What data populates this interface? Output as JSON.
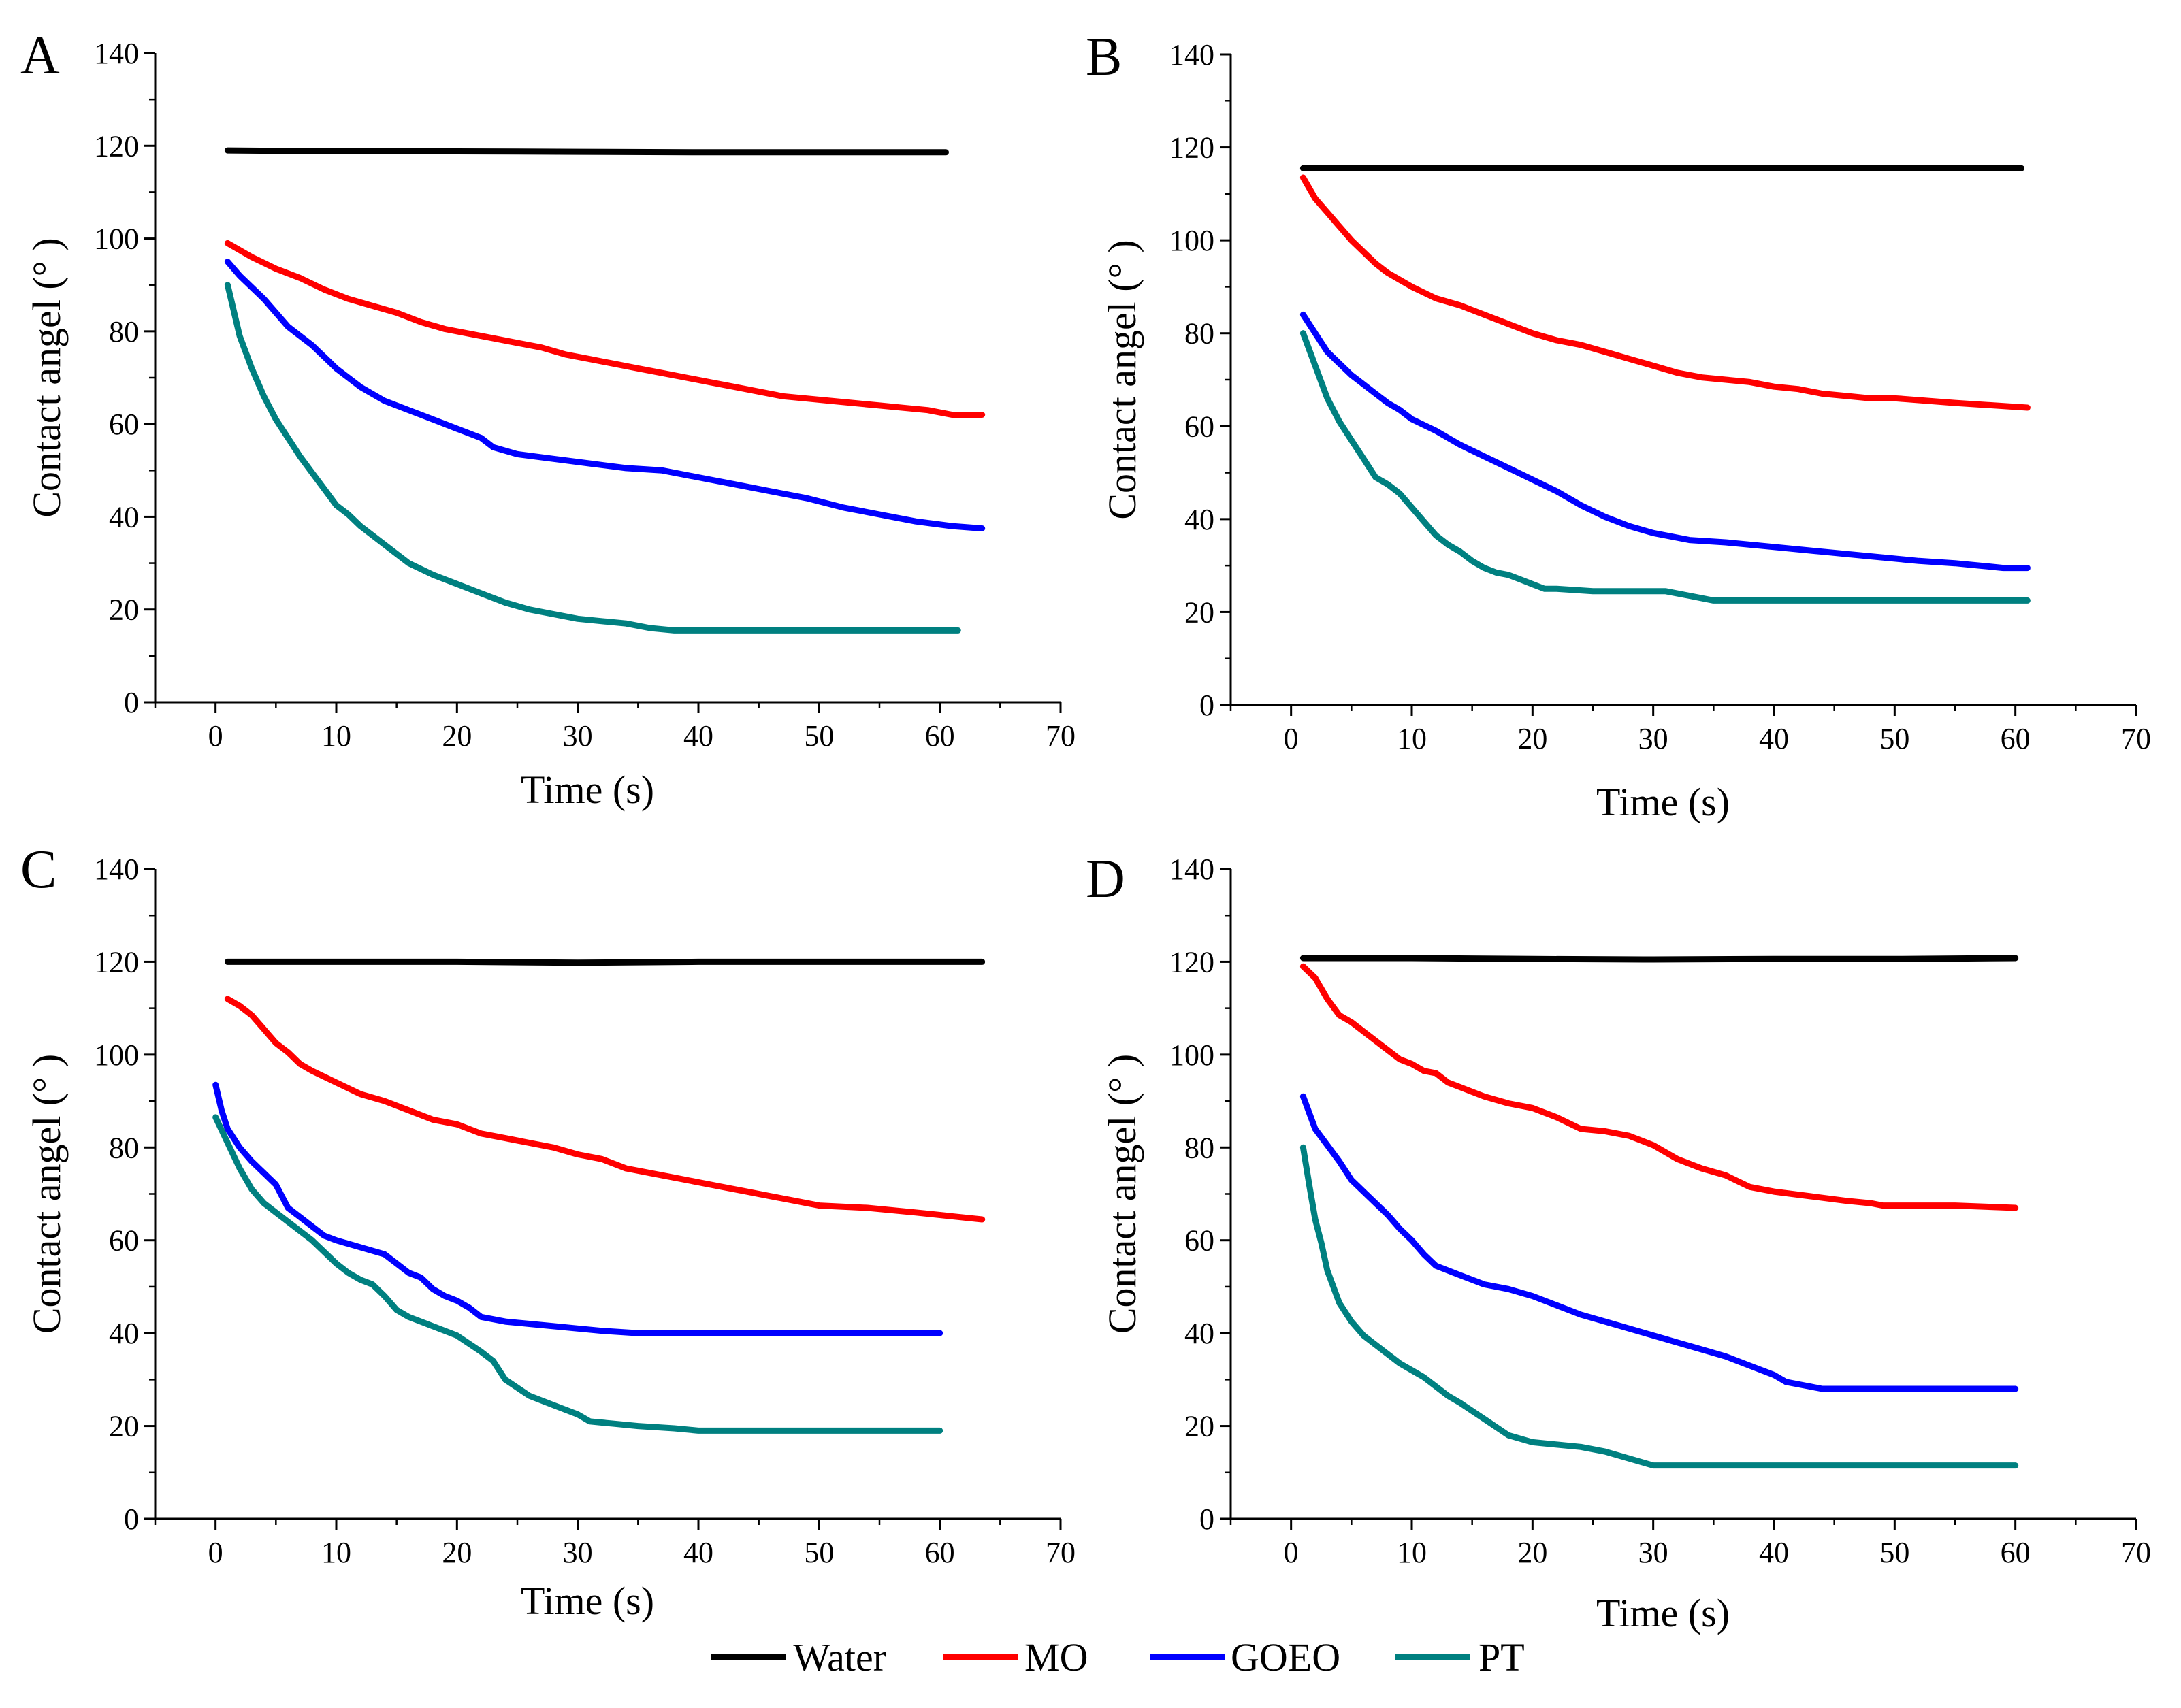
{
  "figure": {
    "legend": [
      {
        "name": "Water",
        "color": "#000000"
      },
      {
        "name": "MO",
        "color": "#ff0000"
      },
      {
        "name": "GOEO",
        "color": "#0000ff"
      },
      {
        "name": "PT",
        "color": "#008080"
      }
    ]
  },
  "chart_data": [
    {
      "type": "line",
      "panel": "A",
      "xlabel": "Time (s)",
      "ylabel": "Contact angel (° )",
      "xlim": [
        -5,
        70
      ],
      "ylim": [
        0,
        140
      ],
      "xticks": [
        0,
        10,
        20,
        30,
        40,
        50,
        60,
        70
      ],
      "yticks": [
        0,
        20,
        40,
        60,
        80,
        100,
        120,
        140
      ],
      "series": [
        {
          "name": "Water",
          "color": "#000000",
          "x": [
            1,
            10,
            20,
            30,
            40,
            50,
            60.5
          ],
          "y": [
            119,
            118.8,
            118.8,
            118.7,
            118.6,
            118.6,
            118.6
          ]
        },
        {
          "name": "MO",
          "color": "#ff0000",
          "x": [
            1,
            3,
            5,
            7,
            9,
            11,
            13,
            15,
            17,
            19,
            21,
            23,
            25,
            27,
            29,
            31,
            33,
            35,
            37,
            39,
            41,
            43,
            45,
            47,
            49,
            51,
            53,
            55,
            57,
            59,
            61,
            63.5
          ],
          "y": [
            99,
            96,
            93.5,
            91.5,
            89,
            87,
            85.5,
            84,
            82,
            80.5,
            79.5,
            78.5,
            77.5,
            76.5,
            75,
            74,
            73,
            72,
            71,
            70,
            69,
            68,
            67,
            66,
            65.5,
            65,
            64.5,
            64,
            63.5,
            63,
            62,
            62
          ]
        },
        {
          "name": "GOEO",
          "color": "#0000ff",
          "x": [
            1,
            2,
            4,
            6,
            8,
            10,
            12,
            14,
            16,
            18,
            20,
            22,
            23,
            25,
            28,
            31,
            34,
            37,
            40,
            43,
            46,
            49,
            52,
            55,
            58,
            61,
            63.5
          ],
          "y": [
            95,
            92,
            87,
            81,
            77,
            72,
            68,
            65,
            63,
            61,
            59,
            57,
            55,
            53.5,
            52.5,
            51.5,
            50.5,
            50,
            48.5,
            47,
            45.5,
            44,
            42,
            40.5,
            39,
            38,
            37.5
          ]
        },
        {
          "name": "PT",
          "color": "#008080",
          "x": [
            1,
            2,
            3,
            4,
            5,
            6,
            7,
            8,
            9,
            10,
            11,
            12,
            13,
            14,
            16,
            18,
            20,
            22,
            24,
            26,
            28,
            30,
            32,
            34,
            36,
            38,
            40,
            45,
            50,
            55,
            61.5
          ],
          "y": [
            90,
            79,
            72,
            66,
            61,
            57,
            53,
            49.5,
            46,
            42.5,
            40.5,
            38,
            36,
            34,
            30,
            27.5,
            25.5,
            23.5,
            21.5,
            20,
            19,
            18,
            17.5,
            17,
            16,
            15.5,
            15.5,
            15.5,
            15.5,
            15.5,
            15.5
          ]
        }
      ]
    },
    {
      "type": "line",
      "panel": "B",
      "xlabel": "Time (s)",
      "ylabel": "Contact angel (° )",
      "xlim": [
        -5,
        70
      ],
      "ylim": [
        0,
        140
      ],
      "xticks": [
        0,
        10,
        20,
        30,
        40,
        50,
        60,
        70
      ],
      "yticks": [
        0,
        20,
        40,
        60,
        80,
        100,
        120,
        140
      ],
      "series": [
        {
          "name": "Water",
          "color": "#000000",
          "x": [
            1,
            10,
            20,
            30,
            40,
            50,
            60.5
          ],
          "y": [
            115.5,
            115.5,
            115.5,
            115.5,
            115.5,
            115.5,
            115.5
          ]
        },
        {
          "name": "MO",
          "color": "#ff0000",
          "x": [
            1,
            2,
            3,
            4,
            5,
            6,
            7,
            8,
            9,
            10,
            12,
            14,
            16,
            18,
            20,
            22,
            24,
            26,
            28,
            30,
            32,
            34,
            36,
            38,
            40,
            42,
            44,
            46,
            48,
            50,
            55,
            61
          ],
          "y": [
            113.5,
            109,
            106,
            103,
            100,
            97.5,
            95,
            93,
            91.5,
            90,
            87.5,
            86,
            84,
            82,
            80,
            78.5,
            77.5,
            76,
            74.5,
            73,
            71.5,
            70.5,
            70,
            69.5,
            68.5,
            68,
            67,
            66.5,
            66,
            66,
            65,
            64
          ]
        },
        {
          "name": "GOEO",
          "color": "#0000ff",
          "x": [
            1,
            2,
            3,
            4,
            5,
            6,
            7,
            8,
            9,
            10,
            12,
            14,
            16,
            18,
            20,
            22,
            24,
            26,
            28,
            30,
            33,
            36,
            40,
            44,
            48,
            52,
            55,
            57,
            59,
            61
          ],
          "y": [
            84,
            80,
            76,
            73.5,
            71,
            69,
            67,
            65,
            63.5,
            61.5,
            59,
            56,
            53.5,
            51,
            48.5,
            46,
            43,
            40.5,
            38.5,
            37,
            35.5,
            35,
            34,
            33,
            32,
            31,
            30.5,
            30,
            29.5,
            29.5
          ]
        },
        {
          "name": "PT",
          "color": "#008080",
          "x": [
            1,
            2,
            3,
            4,
            5,
            6,
            7,
            8,
            9,
            10,
            11,
            12,
            13,
            14,
            15,
            16,
            17,
            18,
            19,
            20,
            21,
            22,
            25,
            28,
            31,
            33,
            35,
            40,
            45,
            50,
            55,
            61
          ],
          "y": [
            80,
            73,
            66,
            61,
            57,
            53,
            49,
            47.5,
            45.5,
            42.5,
            39.5,
            36.5,
            34.5,
            33,
            31,
            29.5,
            28.5,
            28,
            27,
            26,
            25,
            25,
            24.5,
            24.5,
            24.5,
            23.5,
            22.5,
            22.5,
            22.5,
            22.5,
            22.5,
            22.5
          ]
        }
      ]
    },
    {
      "type": "line",
      "panel": "C",
      "xlabel": "Time (s)",
      "ylabel": "Contact angel (° )",
      "xlim": [
        -5,
        70
      ],
      "ylim": [
        0,
        140
      ],
      "xticks": [
        0,
        10,
        20,
        30,
        40,
        50,
        60,
        70
      ],
      "yticks": [
        0,
        20,
        40,
        60,
        80,
        100,
        120,
        140
      ],
      "series": [
        {
          "name": "Water",
          "color": "#000000",
          "x": [
            1,
            10,
            20,
            30,
            40,
            50,
            63.5
          ],
          "y": [
            120,
            120,
            120,
            119.8,
            120,
            120,
            120
          ]
        },
        {
          "name": "MO",
          "color": "#ff0000",
          "x": [
            1,
            2,
            3,
            4,
            5,
            6,
            7,
            8,
            10,
            12,
            14,
            16,
            18,
            20,
            22,
            24,
            26,
            28,
            30,
            32,
            34,
            36,
            38,
            40,
            42,
            44,
            46,
            48,
            50,
            54,
            58,
            63.5
          ],
          "y": [
            112,
            110.5,
            108.5,
            105.5,
            102.5,
            100.5,
            98,
            96.5,
            94,
            91.5,
            90,
            88,
            86,
            85,
            83,
            82,
            81,
            80,
            78.5,
            77.5,
            75.5,
            74.5,
            73.5,
            72.5,
            71.5,
            70.5,
            69.5,
            68.5,
            67.5,
            67,
            66,
            64.5
          ]
        },
        {
          "name": "GOEO",
          "color": "#0000ff",
          "x": [
            0,
            0.5,
            1,
            2,
            3,
            4,
            5,
            6,
            7,
            8,
            9,
            10,
            12,
            14,
            15,
            16,
            17,
            18,
            19,
            20,
            21,
            22,
            24,
            26,
            28,
            30,
            32,
            35,
            38,
            40,
            45,
            50,
            55,
            60
          ],
          "y": [
            93.5,
            88,
            84,
            80,
            77,
            74.5,
            72,
            67,
            65,
            63,
            61,
            60,
            58.5,
            57,
            55,
            53,
            52,
            49.5,
            48,
            47,
            45.5,
            43.5,
            42.5,
            42,
            41.5,
            41,
            40.5,
            40,
            40,
            40,
            40,
            40,
            40,
            40
          ]
        },
        {
          "name": "PT",
          "color": "#008080",
          "x": [
            0,
            1,
            2,
            3,
            4,
            5,
            6,
            7,
            8,
            9,
            10,
            11,
            12,
            13,
            14,
            15,
            16,
            17,
            18,
            20,
            22,
            23,
            24,
            26,
            28,
            30,
            31,
            33,
            35,
            38,
            40,
            45,
            50,
            55,
            60
          ],
          "y": [
            86.5,
            81,
            75.5,
            71,
            68,
            66,
            64,
            62,
            60,
            57.5,
            55,
            53,
            51.5,
            50.5,
            48,
            45,
            43.5,
            42.5,
            41.5,
            39.5,
            36,
            34,
            30,
            26.5,
            24.5,
            22.5,
            21,
            20.5,
            20,
            19.5,
            19,
            19,
            19,
            19,
            19
          ]
        }
      ]
    },
    {
      "type": "line",
      "panel": "D",
      "xlabel": "Time (s)",
      "ylabel": "Contact angel (° )",
      "xlim": [
        -5,
        70
      ],
      "ylim": [
        0,
        140
      ],
      "xticks": [
        0,
        10,
        20,
        30,
        40,
        50,
        60,
        70
      ],
      "yticks": [
        0,
        20,
        40,
        60,
        80,
        100,
        120,
        140
      ],
      "series": [
        {
          "name": "Water",
          "color": "#000000",
          "x": [
            1,
            10,
            20,
            30,
            40,
            50,
            60
          ],
          "y": [
            120.8,
            120.8,
            120.6,
            120.5,
            120.6,
            120.6,
            120.8
          ]
        },
        {
          "name": "MO",
          "color": "#ff0000",
          "x": [
            1,
            2,
            3,
            4,
            5,
            6,
            7,
            8,
            9,
            10,
            11,
            12,
            13,
            14,
            16,
            18,
            20,
            22,
            24,
            26,
            28,
            30,
            32,
            34,
            36,
            38,
            40,
            43,
            46,
            48,
            49,
            50,
            55,
            60
          ],
          "y": [
            119,
            116.5,
            112,
            108.5,
            107,
            105,
            103,
            101,
            99,
            98,
            96.5,
            96,
            94,
            93,
            91,
            89.5,
            88.5,
            86.5,
            84,
            83.5,
            82.5,
            80.5,
            77.5,
            75.5,
            74,
            71.5,
            70.5,
            69.5,
            68.5,
            68,
            67.5,
            67.5,
            67.5,
            67
          ]
        },
        {
          "name": "GOEO",
          "color": "#0000ff",
          "x": [
            1,
            2,
            3,
            4,
            5,
            6,
            7,
            8,
            9,
            10,
            11,
            12,
            13,
            14,
            16,
            18,
            20,
            22,
            24,
            26,
            28,
            30,
            32,
            34,
            36,
            38,
            40,
            41,
            43,
            44,
            45,
            50,
            55,
            60
          ],
          "y": [
            91,
            84,
            80.5,
            77,
            73,
            70.5,
            68,
            65.5,
            62.5,
            60,
            57,
            54.5,
            53.5,
            52.5,
            50.5,
            49.5,
            48,
            46,
            44,
            42.5,
            41,
            39.5,
            38,
            36.5,
            35,
            33,
            31,
            29.5,
            28.5,
            28,
            28,
            28,
            28,
            28
          ]
        },
        {
          "name": "PT",
          "color": "#008080",
          "x": [
            1,
            1.5,
            2,
            2.5,
            3,
            4,
            5,
            6,
            7,
            8,
            9,
            10,
            11,
            12,
            13,
            14,
            16,
            18,
            20,
            22,
            24,
            26,
            28,
            30,
            31,
            32,
            34,
            36,
            40,
            45,
            50,
            55,
            60
          ],
          "y": [
            80,
            72,
            64.5,
            59.5,
            53.5,
            46.5,
            42.5,
            39.5,
            37.5,
            35.5,
            33.5,
            32,
            30.5,
            28.5,
            26.5,
            25,
            21.5,
            18,
            16.5,
            16,
            15.5,
            14.5,
            13,
            11.5,
            11.5,
            11.5,
            11.5,
            11.5,
            11.5,
            11.5,
            11.5,
            11.5,
            11.5
          ]
        }
      ]
    }
  ]
}
